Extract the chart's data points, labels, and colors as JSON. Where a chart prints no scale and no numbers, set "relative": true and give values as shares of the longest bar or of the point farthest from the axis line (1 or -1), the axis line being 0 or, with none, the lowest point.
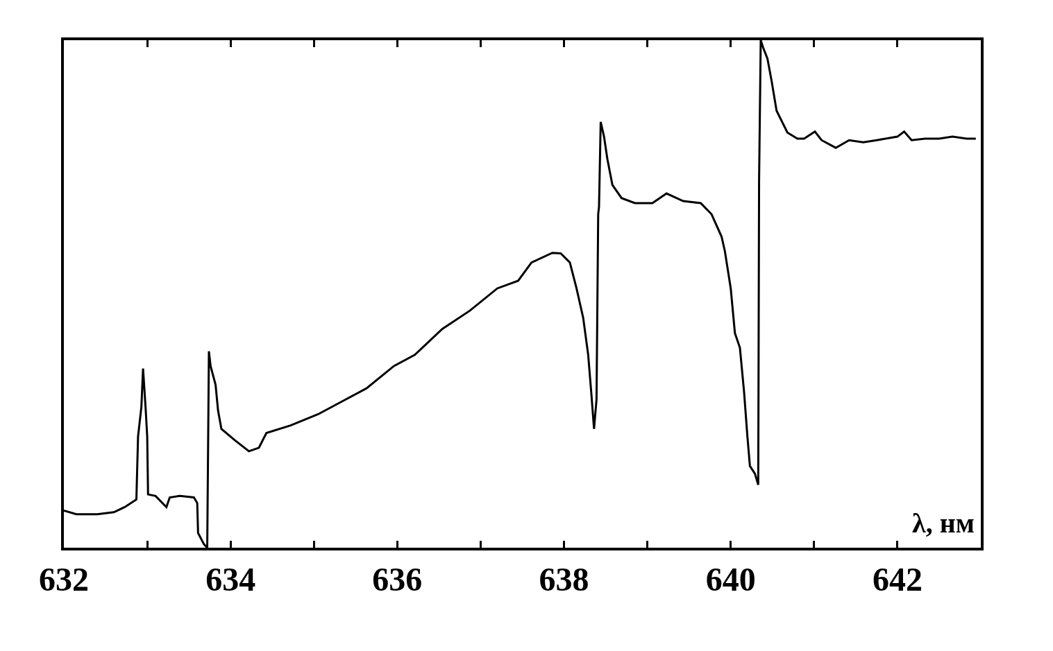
{
  "chart_data": {
    "type": "line",
    "xlabel": "λ, нм",
    "relative": true,
    "color": "#000000",
    "line_style": "solid",
    "marker": "none",
    "xlim": [
      632,
      643
    ],
    "xticks": [
      632,
      {
        "value": 633,
        "label": null
      },
      634,
      {
        "value": 635,
        "label": null
      },
      636,
      {
        "value": 637,
        "label": null
      },
      638,
      {
        "value": 639,
        "label": null
      },
      640,
      {
        "value": 641,
        "label": null
      },
      642
    ],
    "x": [
      632.0,
      632.15,
      632.4,
      632.6,
      632.73,
      632.87,
      632.89,
      632.93,
      632.95,
      632.98,
      633.0,
      633.01,
      633.1,
      633.23,
      633.27,
      633.39,
      633.56,
      633.6,
      633.61,
      633.68,
      633.72,
      633.74,
      633.76,
      633.82,
      633.85,
      633.89,
      634.05,
      634.22,
      634.34,
      634.43,
      634.72,
      635.05,
      635.38,
      635.63,
      635.96,
      636.21,
      636.54,
      636.87,
      637.2,
      637.45,
      637.61,
      637.86,
      637.96,
      638.07,
      638.15,
      638.23,
      638.29,
      638.33,
      638.36,
      638.39,
      638.41,
      638.42,
      638.44,
      638.48,
      638.52,
      638.58,
      638.69,
      638.85,
      639.06,
      639.23,
      639.43,
      639.64,
      639.77,
      639.89,
      639.93,
      640.0,
      640.05,
      640.11,
      640.16,
      640.2,
      640.23,
      640.29,
      640.33,
      640.34,
      640.36,
      640.39,
      640.44,
      640.49,
      640.55,
      640.68,
      640.8,
      640.88,
      641.01,
      641.09,
      641.26,
      641.42,
      641.59,
      641.75,
      642.0,
      642.08,
      642.17,
      642.33,
      642.5,
      642.66,
      642.83,
      642.94
    ],
    "values": [
      0.073,
      0.066,
      0.066,
      0.07,
      0.08,
      0.095,
      0.219,
      0.277,
      0.353,
      0.277,
      0.219,
      0.105,
      0.102,
      0.08,
      0.099,
      0.102,
      0.099,
      0.088,
      0.029,
      0.007,
      0,
      0.387,
      0.358,
      0.321,
      0.27,
      0.234,
      0.212,
      0.19,
      0.197,
      0.226,
      0.241,
      0.263,
      0.292,
      0.314,
      0.358,
      0.38,
      0.431,
      0.467,
      0.511,
      0.526,
      0.562,
      0.581,
      0.58,
      0.562,
      0.511,
      0.453,
      0.38,
      0.299,
      0.234,
      0.292,
      0.657,
      0.672,
      0.839,
      0.81,
      0.766,
      0.715,
      0.689,
      0.679,
      0.679,
      0.698,
      0.683,
      0.679,
      0.657,
      0.613,
      0.584,
      0.511,
      0.423,
      0.394,
      0.307,
      0.219,
      0.161,
      0.146,
      0.124,
      0.723,
      1,
      0.985,
      0.964,
      0.92,
      0.861,
      0.818,
      0.806,
      0.806,
      0.82,
      0.803,
      0.788,
      0.803,
      0.799,
      0.803,
      0.81,
      0.82,
      0.803,
      0.806,
      0.806,
      0.81,
      0.806,
      0.806
    ]
  }
}
